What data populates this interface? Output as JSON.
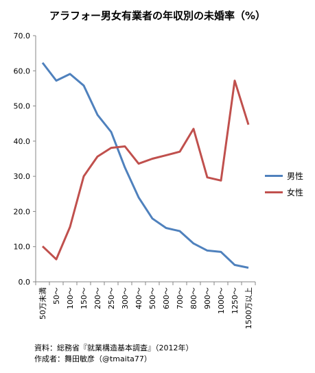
{
  "chart_data": {
    "type": "line",
    "title": "アラフォー男女有業者の年収別の未婚率（%）",
    "categories": [
      "50万未満",
      "50～",
      "100～",
      "150～",
      "200～",
      "250～",
      "300～",
      "400～",
      "500～",
      "600～",
      "700～",
      "800～",
      "900～",
      "1000～",
      "1250～",
      "1500万以上"
    ],
    "yticks": [
      "0.0",
      "10.0",
      "20.0",
      "30.0",
      "40.0",
      "50.0",
      "60.0",
      "70.0"
    ],
    "ylim": [
      0,
      70
    ],
    "grid": false,
    "legend_position": "right",
    "series": [
      {
        "name": "男性",
        "color": "#4F81BD",
        "values": [
          62.3,
          57.2,
          59.1,
          55.8,
          47.5,
          42.6,
          32.5,
          24.0,
          18.0,
          15.3,
          14.4,
          10.9,
          8.9,
          8.5,
          4.8,
          4.0
        ]
      },
      {
        "name": "女性",
        "color": "#C0504D",
        "values": [
          10.1,
          6.4,
          15.6,
          30.0,
          35.6,
          38.1,
          38.5,
          33.6,
          35.0,
          36.0,
          37.0,
          43.5,
          29.7,
          28.8,
          57.2,
          44.7
        ]
      }
    ]
  },
  "footer": {
    "source": "資料：総務省『就業構造基本調査』（2012年）",
    "author": "作成者：舞田敏彦（@tmaita77）"
  }
}
